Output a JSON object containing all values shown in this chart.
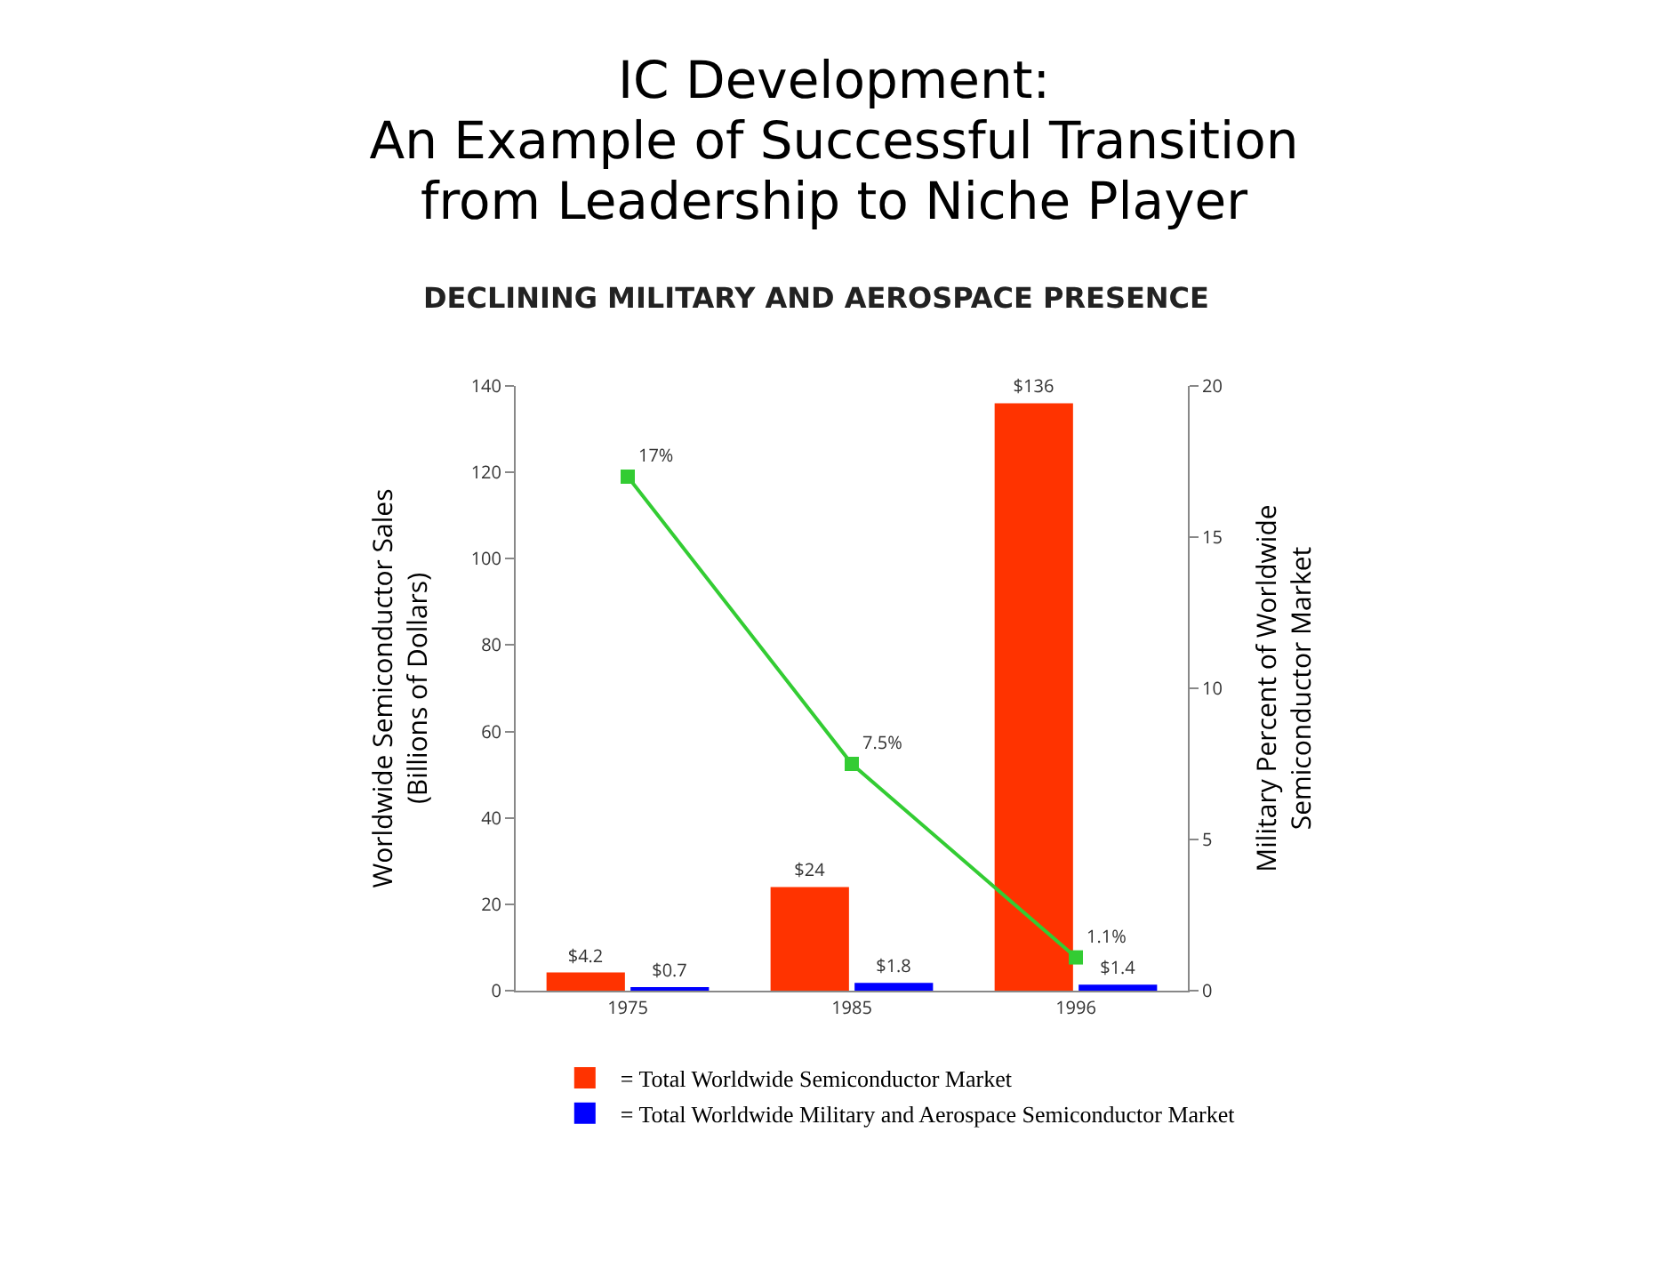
{
  "chart_data": {
    "type": "bar",
    "title": "IC Development:\nAn Example of Successful Transition\nfrom Leadership to Niche Player",
    "subtitle": "DECLINING MILITARY AND AEROSPACE PRESENCE",
    "ylabel": "Worldwide Semiconductor Sales\n(Billions of Dollars)",
    "y2label": "Military Percent of Worldwide\nSemiconductor Market",
    "categories": [
      "1975",
      "1985",
      "1996"
    ],
    "series": [
      {
        "name": "= Total Worldwide Semiconductor Market",
        "color": "#ff3300",
        "values": [
          4.2,
          24,
          136
        ],
        "value_labels": [
          "$4.2",
          "$24",
          "$136"
        ]
      },
      {
        "name": "= Total Worldwide Military and Aerospace Semiconductor Market",
        "color": "#0000ff",
        "values": [
          0.7,
          1.8,
          1.4
        ],
        "value_labels": [
          "$0.7",
          "$1.8",
          "$1.4"
        ]
      },
      {
        "type": "line",
        "axis": "y2",
        "color": "#33cc33",
        "values": [
          17,
          7.5,
          1.1
        ],
        "value_labels": [
          "17%",
          "7.5%",
          "1.1%"
        ]
      }
    ],
    "ylim": [
      0,
      140
    ],
    "yticks": [
      0,
      20,
      40,
      60,
      80,
      100,
      120,
      140
    ],
    "y2lim": [
      0,
      20
    ],
    "y2ticks": [
      0,
      5,
      10,
      15,
      20
    ],
    "marker": "square",
    "line_style": "solid",
    "grid": false,
    "legend": "bottom"
  }
}
